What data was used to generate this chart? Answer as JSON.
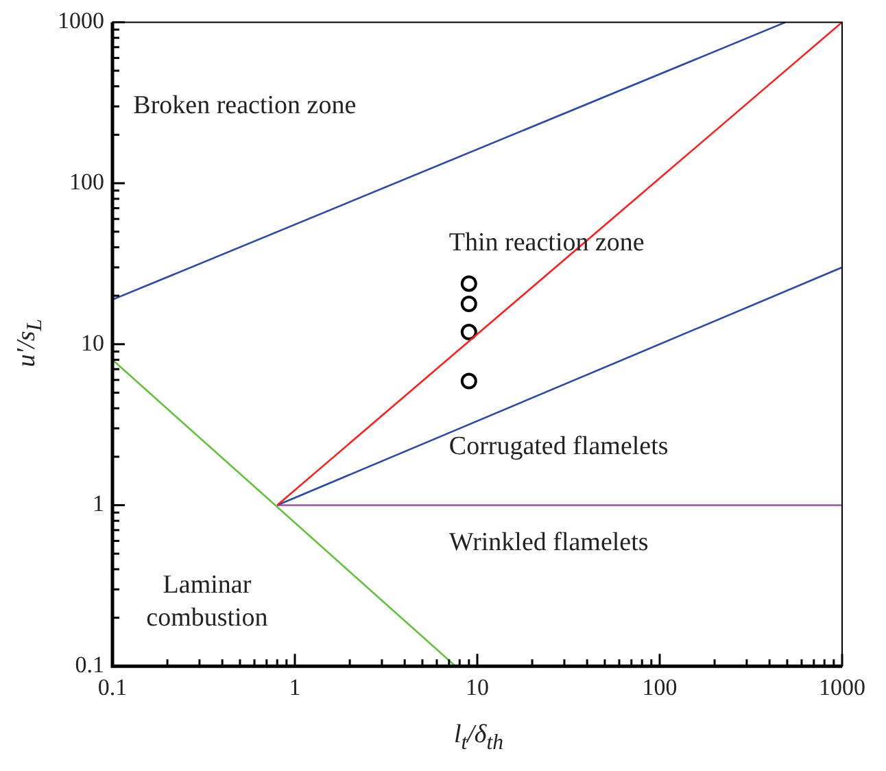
{
  "chart_data": {
    "type": "line",
    "xlabel": "l$_{t}$/δ$_{th}$",
    "ylabel": "u′/s$_{L}$",
    "log": "xy",
    "grid": false,
    "legend": false,
    "marker": "none",
    "line_style": "solid",
    "xlim": [
      0.1,
      1000
    ],
    "ylim": [
      0.1,
      1000
    ],
    "xticks": [
      0.1,
      {
        "value": 0.2,
        "label": null
      },
      {
        "value": 0.3,
        "label": null
      },
      {
        "value": 0.4,
        "label": null
      },
      {
        "value": 0.5,
        "label": null
      },
      {
        "value": 0.6,
        "label": null
      },
      {
        "value": 0.7,
        "label": null
      },
      {
        "value": 0.8,
        "label": null
      },
      {
        "value": 0.9,
        "label": null
      },
      1,
      {
        "value": 2,
        "label": null
      },
      {
        "value": 3,
        "label": null
      },
      {
        "value": 4,
        "label": null
      },
      {
        "value": 5,
        "label": null
      },
      {
        "value": 6,
        "label": null
      },
      {
        "value": 7,
        "label": null
      },
      {
        "value": 8,
        "label": null
      },
      {
        "value": 9,
        "label": null
      },
      10,
      {
        "value": 20,
        "label": null
      },
      {
        "value": 30,
        "label": null
      },
      {
        "value": 40,
        "label": null
      },
      {
        "value": 50,
        "label": null
      },
      {
        "value": 60,
        "label": null
      },
      {
        "value": 70,
        "label": null
      },
      {
        "value": 80,
        "label": null
      },
      {
        "value": 90,
        "label": null
      },
      100,
      {
        "value": 200,
        "label": null
      },
      {
        "value": 300,
        "label": null
      },
      {
        "value": 400,
        "label": null
      },
      {
        "value": 500,
        "label": null
      },
      {
        "value": 600,
        "label": null
      },
      {
        "value": 700,
        "label": null
      },
      {
        "value": 800,
        "label": null
      },
      {
        "value": 900,
        "label": null
      },
      1000
    ],
    "yticks": [
      0.1,
      {
        "value": 0.2,
        "label": null
      },
      {
        "value": 0.3,
        "label": null
      },
      {
        "value": 0.4,
        "label": null
      },
      {
        "value": 0.5,
        "label": null
      },
      {
        "value": 0.6,
        "label": null
      },
      {
        "value": 0.7,
        "label": null
      },
      {
        "value": 0.8,
        "label": null
      },
      {
        "value": 0.9,
        "label": null
      },
      1,
      {
        "value": 2,
        "label": null
      },
      {
        "value": 3,
        "label": null
      },
      {
        "value": 4,
        "label": null
      },
      {
        "value": 5,
        "label": null
      },
      {
        "value": 6,
        "label": null
      },
      {
        "value": 7,
        "label": null
      },
      {
        "value": 8,
        "label": null
      },
      {
        "value": 9,
        "label": null
      },
      10,
      {
        "value": 20,
        "label": null
      },
      {
        "value": 30,
        "label": null
      },
      {
        "value": 40,
        "label": null
      },
      {
        "value": 50,
        "label": null
      },
      {
        "value": 60,
        "label": null
      },
      {
        "value": 70,
        "label": null
      },
      {
        "value": 80,
        "label": null
      },
      {
        "value": 90,
        "label": null
      },
      100,
      {
        "value": 200,
        "label": null
      },
      {
        "value": 300,
        "label": null
      },
      {
        "value": 400,
        "label": null
      },
      {
        "value": 500,
        "label": null
      },
      {
        "value": 600,
        "label": null
      },
      {
        "value": 700,
        "label": null
      },
      {
        "value": 800,
        "label": null
      },
      {
        "value": 900,
        "label": null
      },
      1000
    ],
    "series": [
      {
        "color": "#2e4aa8",
        "x": [
          0.1,
          490
        ],
        "values": [
          18.9,
          1000
        ]
      },
      {
        "color": "#ff2020",
        "x": [
          0.8,
          1000
        ],
        "values": [
          1,
          1000
        ]
      },
      {
        "color": "#2e4aa8",
        "x": [
          0.8,
          1000
        ],
        "values": [
          1,
          30
        ]
      },
      {
        "color": "#a050b0",
        "x": [
          0.8,
          1000
        ],
        "values": [
          1,
          1
        ]
      },
      {
        "color": "#66c040",
        "x": [
          0.1,
          7.6
        ],
        "values": [
          8,
          0.1
        ]
      },
      {
        "type": "scatter",
        "color": "#000000",
        "marker": "circle",
        "x": [
          9,
          9,
          9,
          9
        ],
        "values": [
          23.8,
          17.8,
          11.9,
          5.9
        ]
      }
    ],
    "annotations": [
      "Broken reaction zone",
      "Thin reaction zone",
      "Corrugated flamelets",
      "Wrinkled flamelets",
      "Laminar combustion"
    ]
  }
}
